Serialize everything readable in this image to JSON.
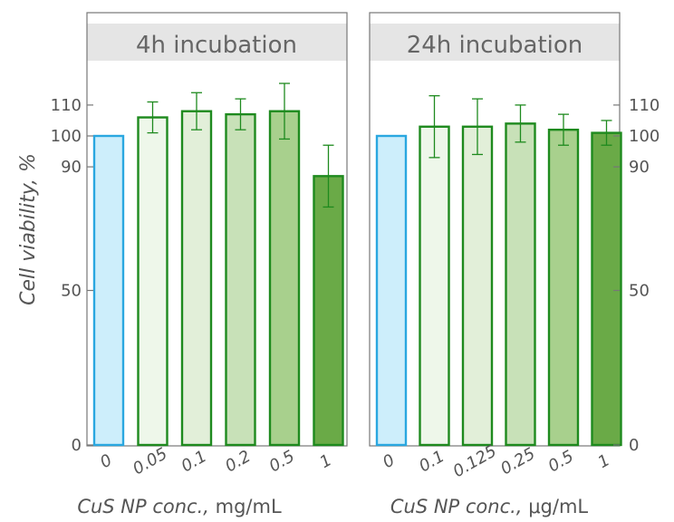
{
  "chart_data": [
    {
      "type": "bar",
      "title": "4h incubation",
      "ylabel": "Cell viability, %",
      "xlabel_italic": "CuS NP conc.,",
      "xlabel_unit": "mg/mL",
      "categories": [
        "0",
        "0.05",
        "0.1",
        "0.2",
        "0.5",
        "1"
      ],
      "values": [
        100,
        106,
        108,
        107,
        108,
        87
      ],
      "errors": [
        0,
        5,
        6,
        5,
        9,
        10
      ],
      "ylim": [
        0,
        130
      ],
      "yticks": [
        "0",
        "50",
        "90",
        "100",
        "110"
      ],
      "legend": "none",
      "grid": false
    },
    {
      "type": "bar",
      "title": "24h incubation",
      "xlabel_italic": "CuS NP conc.,",
      "xlabel_unit": "μg/mL",
      "categories": [
        "0",
        "0.1",
        "0.125",
        "0.25",
        "0.5",
        "1"
      ],
      "values": [
        100,
        103,
        103,
        104,
        102,
        101
      ],
      "errors": [
        0,
        10,
        9,
        6,
        5,
        4
      ],
      "ylim": [
        0,
        130
      ],
      "yticks": [
        "0",
        "50",
        "90",
        "100",
        "110"
      ],
      "legend": "none",
      "grid": false
    }
  ],
  "colors": {
    "control_fill": "#cdeefb",
    "control_stroke": "#2aa7e0",
    "bar_stroke": "#1e8a1e",
    "bar_fills": [
      "#eef7ea",
      "#e2efd9",
      "#c8e1b8",
      "#a8d08d",
      "#6aaa47"
    ],
    "title_band": "#e5e5e5",
    "axis": "#777777"
  }
}
